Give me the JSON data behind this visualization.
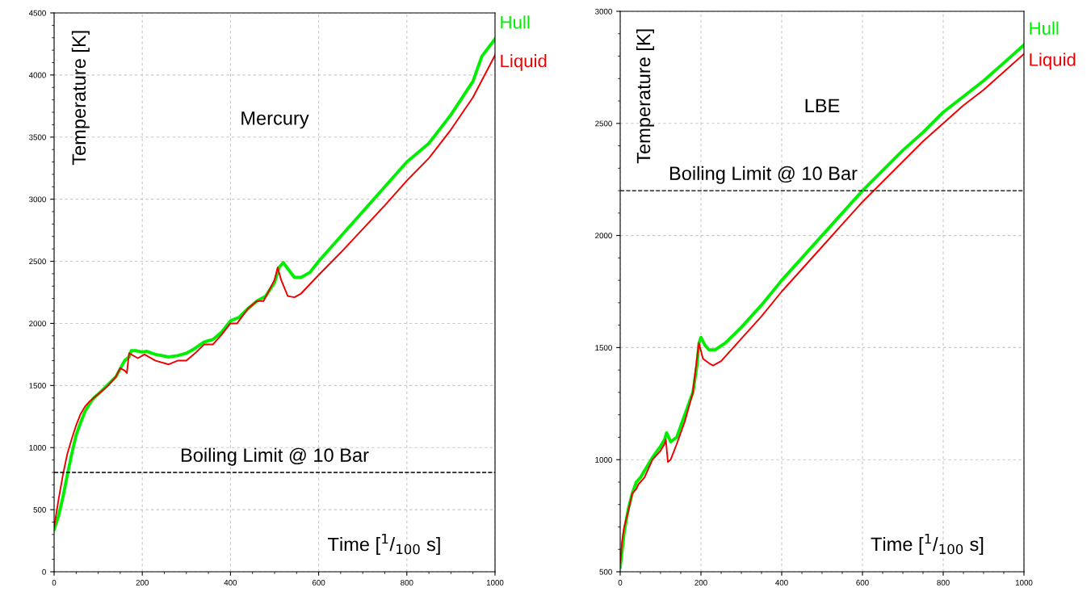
{
  "chart_data": [
    {
      "type": "line",
      "title": "Mercury",
      "xlabel": "Time [$^{1}$/$_{100}$ s]",
      "ylabel": "Temperature [K]",
      "xlim": [
        0,
        1000
      ],
      "xticks": [
        0,
        200,
        400,
        600,
        800,
        1000
      ],
      "ylim": [
        0,
        4500
      ],
      "yticks": [
        0,
        500,
        1000,
        1500,
        2000,
        2500,
        3000,
        3500,
        4000,
        4500
      ],
      "grid": true,
      "legend": false,
      "ref_lines": [
        {
          "axis": "y",
          "value": 800,
          "label": "Boiling Limit @ 10 Bar",
          "color": "#000000",
          "line_style": "dashed"
        }
      ],
      "series": [
        {
          "name": "Hull",
          "color": "#00ee00",
          "x": [
            0,
            10,
            20,
            30,
            40,
            50,
            60,
            70,
            80,
            90,
            100,
            120,
            140,
            160,
            170,
            175,
            185,
            200,
            210,
            230,
            260,
            280,
            300,
            320,
            340,
            360,
            380,
            400,
            420,
            440,
            460,
            480,
            500,
            510,
            520,
            530,
            545,
            560,
            580,
            600,
            650,
            700,
            750,
            800,
            850,
            900,
            950,
            970,
            1000
          ],
          "values": [
            340,
            450,
            600,
            780,
            950,
            1100,
            1200,
            1290,
            1350,
            1400,
            1430,
            1500,
            1570,
            1700,
            1730,
            1780,
            1780,
            1770,
            1775,
            1750,
            1730,
            1740,
            1760,
            1800,
            1850,
            1870,
            1930,
            2020,
            2050,
            2120,
            2180,
            2220,
            2330,
            2450,
            2490,
            2440,
            2370,
            2370,
            2410,
            2500,
            2700,
            2900,
            3100,
            3300,
            3450,
            3680,
            3950,
            4150,
            4290
          ]
        },
        {
          "name": "Liquid",
          "color": "#ee0000",
          "x": [
            0,
            10,
            20,
            30,
            40,
            50,
            60,
            70,
            80,
            90,
            100,
            120,
            140,
            150,
            160,
            165,
            170,
            190,
            205,
            230,
            260,
            280,
            300,
            320,
            340,
            360,
            380,
            400,
            415,
            440,
            460,
            475,
            500,
            507,
            515,
            530,
            545,
            560,
            600,
            650,
            700,
            750,
            800,
            850,
            900,
            950,
            1000
          ],
          "values": [
            360,
            580,
            780,
            950,
            1070,
            1180,
            1270,
            1330,
            1370,
            1400,
            1430,
            1490,
            1570,
            1640,
            1620,
            1600,
            1760,
            1720,
            1750,
            1700,
            1670,
            1700,
            1700,
            1760,
            1830,
            1830,
            1910,
            2000,
            2000,
            2120,
            2180,
            2180,
            2350,
            2450,
            2350,
            2220,
            2210,
            2240,
            2390,
            2570,
            2760,
            2950,
            3150,
            3330,
            3560,
            3820,
            4160
          ]
        }
      ]
    },
    {
      "type": "line",
      "title": "LBE",
      "xlabel": "Time [$^{1}$/$_{100}$ s]",
      "ylabel": "Temperature [K]",
      "xlim": [
        0,
        1000
      ],
      "xticks": [
        0,
        200,
        400,
        600,
        800,
        1000
      ],
      "ylim": [
        500,
        3000
      ],
      "yticks": [
        500,
        1000,
        1500,
        2000,
        2500,
        3000
      ],
      "grid": true,
      "legend": false,
      "ref_lines": [
        {
          "axis": "y",
          "value": 2200,
          "label": "Boiling Limit @ 10 Bar",
          "color": "#000000",
          "line_style": "dashed"
        }
      ],
      "series": [
        {
          "name": "Hull",
          "color": "#00ee00",
          "x": [
            0,
            5,
            10,
            20,
            30,
            40,
            50,
            60,
            80,
            100,
            110,
            115,
            120,
            125,
            140,
            160,
            180,
            190,
            195,
            200,
            210,
            220,
            235,
            260,
            300,
            350,
            400,
            450,
            500,
            550,
            600,
            650,
            700,
            750,
            800,
            850,
            900,
            950,
            1000
          ],
          "values": [
            520,
            600,
            680,
            780,
            850,
            900,
            920,
            950,
            1010,
            1060,
            1090,
            1120,
            1100,
            1080,
            1100,
            1200,
            1300,
            1420,
            1520,
            1545,
            1510,
            1490,
            1490,
            1520,
            1590,
            1690,
            1800,
            1900,
            2000,
            2100,
            2200,
            2290,
            2380,
            2460,
            2550,
            2620,
            2690,
            2770,
            2850
          ]
        },
        {
          "name": "Liquid",
          "color": "#ee0000",
          "x": [
            0,
            5,
            10,
            20,
            30,
            40,
            45,
            60,
            80,
            100,
            110,
            113,
            118,
            125,
            140,
            160,
            180,
            190,
            195,
            205,
            220,
            230,
            250,
            300,
            350,
            400,
            450,
            500,
            550,
            600,
            650,
            700,
            750,
            800,
            850,
            900,
            950,
            1000
          ],
          "values": [
            540,
            640,
            700,
            770,
            850,
            870,
            890,
            920,
            1000,
            1040,
            1070,
            1090,
            990,
            1000,
            1070,
            1170,
            1300,
            1450,
            1520,
            1450,
            1430,
            1420,
            1440,
            1540,
            1640,
            1750,
            1850,
            1950,
            2050,
            2150,
            2240,
            2330,
            2420,
            2500,
            2580,
            2650,
            2730,
            2810
          ]
        }
      ]
    }
  ]
}
